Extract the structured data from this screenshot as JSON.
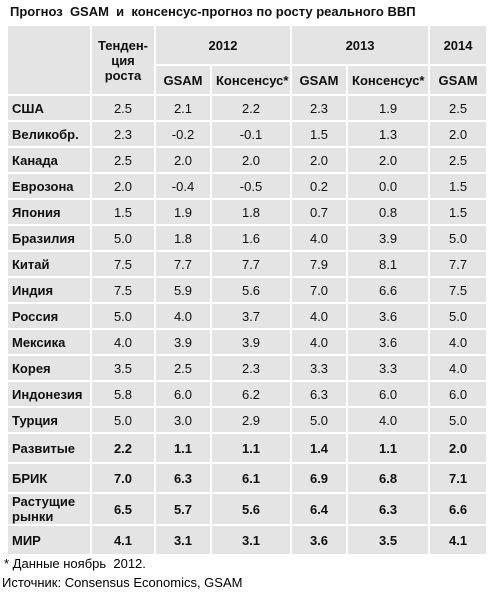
{
  "title": "Прогноз  GSAM  и  консенсус-прогноз по росту реального ВВП",
  "table": {
    "header": {
      "trend": "Тенден-ция роста",
      "years": [
        "2012",
        "2013",
        "2014"
      ],
      "sub": [
        "GSAM",
        "Консенсус*",
        "GSAM",
        "Консенсус*",
        "GSAM"
      ]
    },
    "rows": [
      [
        "США",
        "2.5",
        "2.1",
        "2.2",
        "2.3",
        "1.9",
        "2.5"
      ],
      [
        "Великобр.",
        "2.3",
        "-0.2",
        "-0.1",
        "1.5",
        "1.3",
        "2.0"
      ],
      [
        "Канада",
        "2.5",
        "2.0",
        "2.0",
        "2.0",
        "2.0",
        "2.5"
      ],
      [
        "Еврозона",
        "2.0",
        "-0.4",
        "-0.5",
        "0.2",
        "0.0",
        "1.5"
      ],
      [
        "Япония",
        "1.5",
        "1.9",
        "1.8",
        "0.7",
        "0.8",
        "1.5"
      ],
      [
        "Бразилия",
        "5.0",
        "1.8",
        "1.6",
        "4.0",
        "3.9",
        "5.0"
      ],
      [
        "Китай",
        "7.5",
        "7.7",
        "7.7",
        "7.9",
        "8.1",
        "7.7"
      ],
      [
        "Индия",
        "7.5",
        "5.9",
        "5.6",
        "7.0",
        "6.6",
        "7.5"
      ],
      [
        "Россия",
        "5.0",
        "4.0",
        "3.7",
        "4.0",
        "3.6",
        "5.0"
      ],
      [
        "Мексика",
        "4.0",
        "3.9",
        "3.9",
        "4.0",
        "3.6",
        "4.0"
      ],
      [
        "Корея",
        "3.5",
        "2.5",
        "2.3",
        "3.3",
        "3.3",
        "4.0"
      ],
      [
        "Индонезия",
        "5.8",
        "6.0",
        "6.2",
        "6.3",
        "6.0",
        "6.0"
      ],
      [
        "Турция",
        "5.0",
        "3.0",
        "2.9",
        "5.0",
        "4.0",
        "5.0"
      ],
      [
        "Развитые",
        "2.2",
        "1.1",
        "1.1",
        "1.4",
        "1.1",
        "2.0"
      ],
      [
        "БРИК",
        "7.0",
        "6.3",
        "6.1",
        "6.9",
        "6.8",
        "7.1"
      ],
      [
        "Растущие рынки",
        "6.5",
        "5.7",
        "5.6",
        "6.4",
        "6.3",
        "6.6"
      ],
      [
        "МИР",
        "4.1",
        "3.1",
        "3.1",
        "3.6",
        "3.5",
        "4.1"
      ]
    ]
  },
  "footnote": "* Данные ноябрь  2012.",
  "source": {
    "label": "Источник:",
    "text": "Consensus Economics, GSAM"
  }
}
